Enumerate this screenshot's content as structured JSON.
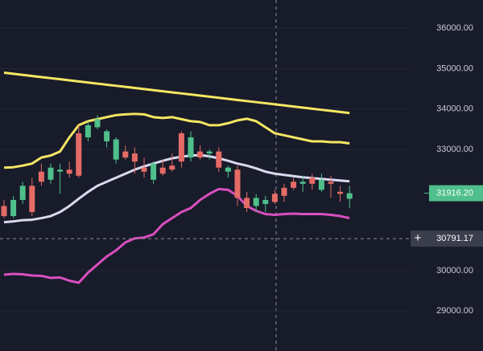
{
  "chart_data": {
    "type": "candlestick",
    "open": [
      31600,
      31350,
      31750,
      32100,
      32450,
      32250,
      32450,
      32500,
      33400,
      33300,
      33550,
      33200,
      32750,
      32950,
      32900,
      32550,
      32250,
      32550,
      32600,
      33400,
      32800,
      32950,
      32900,
      32950,
      32450,
      32500,
      31800,
      31600,
      31650,
      31900,
      32050,
      32200,
      32150,
      32300,
      32000,
      32200,
      31950,
      31780
    ],
    "high": [
      31750,
      31850,
      32200,
      32300,
      32650,
      32650,
      32650,
      32700,
      33600,
      33700,
      33850,
      33500,
      33300,
      33100,
      33050,
      32800,
      32700,
      32750,
      32900,
      33450,
      33450,
      33100,
      33000,
      33050,
      32600,
      32600,
      31950,
      31900,
      31850,
      32000,
      32150,
      32300,
      32350,
      32400,
      32400,
      32350,
      32100,
      32100
    ],
    "low": [
      31300,
      31300,
      31650,
      31350,
      32100,
      32150,
      31900,
      32300,
      32300,
      33200,
      33500,
      33050,
      32650,
      32750,
      32400,
      32300,
      32150,
      32350,
      32450,
      32550,
      32700,
      32750,
      32750,
      32450,
      32300,
      31600,
      31450,
      31450,
      31450,
      31650,
      31700,
      32000,
      31950,
      32000,
      31950,
      31800,
      31700,
      31550
    ],
    "close": [
      31350,
      31750,
      32100,
      31450,
      32200,
      32550,
      32500,
      32400,
      32350,
      33600,
      33750,
      33450,
      33250,
      32800,
      32700,
      32450,
      32650,
      32400,
      32500,
      32700,
      33300,
      32800,
      32950,
      32550,
      32550,
      31800,
      31550,
      31800,
      31750,
      31700,
      31850,
      32050,
      32200,
      32150,
      32250,
      32150,
      31900,
      31916.2
    ],
    "up_color": "#4fbf8b",
    "down_color": "#e56b66",
    "lines": [
      {
        "color": "#f5e663",
        "values": [
          34900,
          34873,
          34846,
          34819,
          34792,
          34765,
          34738,
          34711,
          34684,
          34657,
          34630,
          34603,
          34576,
          34549,
          34522,
          34495,
          34468,
          34441,
          34414,
          34387,
          34360,
          34333,
          34306,
          34279,
          34252,
          34225,
          34198,
          34171,
          34144,
          34117,
          34090,
          34063,
          34036,
          34009,
          33982,
          33955,
          33928,
          33901
        ]
      },
      {
        "color": "#f5e663",
        "values": [
          32550,
          32560,
          32600,
          32650,
          32800,
          32850,
          32950,
          33300,
          33600,
          33700,
          33750,
          33800,
          33850,
          33870,
          33880,
          33870,
          33800,
          33780,
          33800,
          33750,
          33700,
          33680,
          33600,
          33600,
          33650,
          33720,
          33760,
          33700,
          33550,
          33400,
          33350,
          33300,
          33250,
          33200,
          33200,
          33180,
          33180,
          33150
        ]
      },
      {
        "color": "#d9d9f0",
        "values": [
          31200,
          31220,
          31250,
          31260,
          31300,
          31350,
          31450,
          31600,
          31780,
          31950,
          32100,
          32200,
          32300,
          32400,
          32500,
          32580,
          32650,
          32720,
          32780,
          32820,
          32850,
          32860,
          32830,
          32780,
          32720,
          32650,
          32600,
          32530,
          32450,
          32400,
          32370,
          32340,
          32310,
          32290,
          32270,
          32250,
          32230,
          32210
        ]
      },
      {
        "color": "#d94fbf",
        "values": [
          29900,
          29920,
          29910,
          29880,
          29870,
          29820,
          29830,
          29750,
          29700,
          29950,
          30150,
          30350,
          30500,
          30700,
          30800,
          30820,
          30900,
          31150,
          31300,
          31450,
          31550,
          31750,
          31900,
          32020,
          32000,
          31850,
          31600,
          31480,
          31400,
          31380,
          31400,
          31410,
          31400,
          31400,
          31400,
          31380,
          31350,
          31300
        ]
      }
    ],
    "ylim": [
      28010,
      36700
    ],
    "yticks": [
      {
        "value": 29000,
        "label": "29000.00"
      },
      {
        "value": 30000,
        "label": "30000.00"
      },
      {
        "value": 33000,
        "label": "33000.00"
      },
      {
        "value": 34000,
        "label": "34000.00"
      },
      {
        "value": 35000,
        "label": "35000.00"
      },
      {
        "value": 36000,
        "label": "36000.00"
      }
    ],
    "grid": true,
    "last_price": {
      "value": 31916.2,
      "label": "31916.20"
    },
    "crosshair_price": 30791.17,
    "crosshair_marker": "+"
  }
}
